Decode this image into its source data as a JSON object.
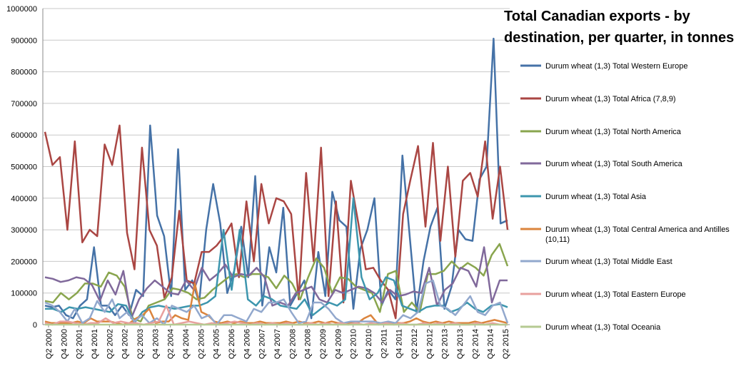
{
  "chart_data": {
    "type": "line",
    "title_lines": [
      "Total Canadian exports - by",
      "destination, per quarter, in tonnes"
    ],
    "xlabel": "",
    "ylabel": "",
    "ylim": [
      0,
      1000000
    ],
    "yticks": [
      0,
      100000,
      200000,
      300000,
      400000,
      500000,
      600000,
      700000,
      800000,
      900000,
      1000000
    ],
    "ytick_labels": [
      "0",
      "100000",
      "200000",
      "300000",
      "400000",
      "500000",
      "600000",
      "700000",
      "800000",
      "900000",
      "1000000"
    ],
    "grid": "horizontal",
    "legend_position": "right",
    "x_tick_labels": [
      "Q2 2000",
      "Q4 2000",
      "Q2 2001",
      "Q4 2001",
      "Q2 2002",
      "Q4 2002",
      "Q2 2003",
      "Q4 2003",
      "Q2 2004",
      "Q4 2004",
      "Q2 2005",
      "Q4 2005",
      "Q2 2006",
      "Q4 2006",
      "Q2 2007",
      "Q4 2007",
      "Q2 2008",
      "Q4 2008",
      "Q2 2009",
      "Q4 2009",
      "Q2 2010",
      "Q4 2010",
      "Q2 2011",
      "Q4 2011",
      "Q2 2012",
      "Q4 2012",
      "Q2 2013",
      "Q4 2013",
      "Q2 2014",
      "Q4 2014",
      "Q2 2015"
    ],
    "series": [
      {
        "name": "Durum wheat (1,3) Total Western Europe",
        "color": "#4572A7",
        "values": [
          60000,
          55000,
          60000,
          30000,
          20000,
          60000,
          80000,
          245000,
          60000,
          60000,
          30000,
          60000,
          30000,
          110000,
          90000,
          630000,
          345000,
          280000,
          90000,
          555000,
          110000,
          140000,
          70000,
          300000,
          445000,
          320000,
          100000,
          170000,
          310000,
          150000,
          470000,
          60000,
          245000,
          165000,
          370000,
          60000,
          100000,
          140000,
          20000,
          230000,
          90000,
          420000,
          330000,
          310000,
          50000,
          240000,
          300000,
          400000,
          60000,
          110000,
          80000,
          535000,
          290000,
          40000,
          200000,
          310000,
          370000,
          50000,
          120000,
          300000,
          270000,
          265000,
          460000,
          500000,
          905000,
          320000,
          330000
        ]
      },
      {
        "name": "Durum wheat (1,3) Total Africa (7,8,9)",
        "color": "#AA4643",
        "values": [
          610000,
          505000,
          530000,
          300000,
          580000,
          260000,
          300000,
          280000,
          570000,
          505000,
          630000,
          290000,
          175000,
          560000,
          300000,
          250000,
          85000,
          150000,
          360000,
          140000,
          130000,
          230000,
          230000,
          250000,
          280000,
          320000,
          150000,
          390000,
          200000,
          445000,
          320000,
          400000,
          390000,
          350000,
          80000,
          480000,
          200000,
          560000,
          90000,
          390000,
          70000,
          455000,
          320000,
          175000,
          180000,
          140000,
          110000,
          20000,
          350000,
          460000,
          565000,
          310000,
          575000,
          265000,
          500000,
          215000,
          455000,
          480000,
          405000,
          580000,
          335000,
          500000,
          300000
        ]
      },
      {
        "name": "Durum wheat (1,3) Total North America",
        "color": "#89A54E",
        "values": [
          75000,
          70000,
          100000,
          80000,
          100000,
          130000,
          130000,
          120000,
          165000,
          155000,
          120000,
          20000,
          10000,
          60000,
          70000,
          80000,
          115000,
          110000,
          100000,
          80000,
          85000,
          110000,
          130000,
          150000,
          160000,
          150000,
          160000,
          160000,
          150000,
          115000,
          155000,
          130000,
          80000,
          150000,
          210000,
          180000,
          100000,
          150000,
          145000,
          120000,
          110000,
          100000,
          40000,
          160000,
          170000,
          40000,
          70000,
          40000,
          160000,
          160000,
          170000,
          200000,
          175000,
          195000,
          180000,
          155000,
          220000,
          255000,
          185000
        ]
      },
      {
        "name": "Durum wheat (1,3) Total South America",
        "color": "#80699B",
        "values": [
          150000,
          145000,
          135000,
          140000,
          150000,
          145000,
          125000,
          75000,
          140000,
          95000,
          170000,
          20000,
          80000,
          115000,
          140000,
          120000,
          100000,
          95000,
          140000,
          110000,
          180000,
          140000,
          160000,
          190000,
          150000,
          160000,
          155000,
          180000,
          150000,
          60000,
          70000,
          60000,
          100000,
          110000,
          120000,
          80000,
          70000,
          110000,
          100000,
          110000,
          120000,
          115000,
          100000,
          70000,
          110000,
          90000,
          95000,
          105000,
          100000,
          180000,
          60000,
          110000,
          130000,
          180000,
          170000,
          120000,
          245000,
          70000,
          140000,
          140000
        ]
      },
      {
        "name": "Durum wheat (1,3) Total Asia",
        "color": "#3D96AE",
        "values": [
          50000,
          50000,
          40000,
          55000,
          50000,
          55000,
          50000,
          45000,
          40000,
          65000,
          60000,
          5000,
          40000,
          55000,
          60000,
          55000,
          50000,
          55000,
          60000,
          60000,
          70000,
          90000,
          300000,
          110000,
          300000,
          80000,
          60000,
          90000,
          80000,
          60000,
          55000,
          50000,
          80000,
          30000,
          50000,
          70000,
          60000,
          80000,
          400000,
          150000,
          80000,
          100000,
          150000,
          140000,
          60000,
          50000,
          40000,
          55000,
          60000,
          60000,
          40000,
          50000,
          70000,
          50000,
          40000,
          60000,
          65000,
          55000
        ]
      },
      {
        "name": "Durum wheat (1,3) Total Central America and Antilles (10,11)",
        "color": "#DB843D",
        "values": [
          10000,
          5000,
          5000,
          5000,
          5000,
          10000,
          5000,
          20000,
          10000,
          10000,
          10000,
          5000,
          0,
          5000,
          20000,
          30000,
          50000,
          5000,
          10000,
          10000,
          30000,
          20000,
          15000,
          130000,
          40000,
          30000,
          10000,
          5000,
          10000,
          5000,
          10000,
          5000,
          5000,
          10000,
          5000,
          5000,
          5000,
          10000,
          5000,
          10000,
          5000,
          5000,
          10000,
          5000,
          10000,
          5000,
          5000,
          5000,
          5000,
          20000,
          30000,
          5000,
          5000,
          5000,
          5000,
          5000,
          10000,
          20000,
          10000,
          5000,
          10000,
          5000,
          10000,
          5000,
          5000,
          5000,
          10000,
          5000,
          10000,
          15000,
          10000,
          5000
        ]
      },
      {
        "name": "Durum wheat (1,3) Total Middle East",
        "color": "#92A8CD",
        "values": [
          70000,
          60000,
          40000,
          10000,
          50000,
          5000,
          20000,
          75000,
          40000,
          80000,
          20000,
          40000,
          10000,
          30000,
          5000,
          20000,
          0,
          60000,
          50000,
          40000,
          60000,
          20000,
          30000,
          0,
          30000,
          30000,
          20000,
          10000,
          50000,
          40000,
          70000,
          70000,
          80000,
          40000,
          5000,
          10000,
          70000,
          70000,
          50000,
          20000,
          5000,
          10000,
          10000,
          10000,
          10000,
          5000,
          10000,
          5000,
          30000,
          20000,
          40000,
          130000,
          140000,
          60000,
          50000,
          30000,
          60000,
          90000,
          40000,
          30000,
          60000,
          70000,
          5000
        ]
      },
      {
        "name": "Durum wheat (1,3) Total Eastern Europe",
        "color": "#E8A09E",
        "values": [
          5000,
          0,
          10000,
          10000,
          5000,
          0,
          5000,
          5000,
          20000,
          5000,
          10000,
          5000,
          5000,
          0,
          5000,
          10000,
          60000,
          0,
          5000,
          10000,
          5000,
          0,
          5000,
          0,
          5000,
          10000,
          5000,
          0,
          5000,
          0,
          5000,
          0,
          5000,
          0,
          0,
          5000,
          0,
          5000,
          0,
          5000,
          0,
          5000,
          0,
          5000,
          0,
          5000,
          0,
          5000,
          0,
          0,
          5000,
          0,
          5000,
          0,
          5000,
          0,
          0,
          5000,
          0,
          5000,
          0,
          0
        ]
      },
      {
        "name": "Durum wheat (1,3) Total Oceania",
        "color": "#B5CA92",
        "values": [
          0,
          0,
          0,
          0,
          0,
          0,
          0,
          0,
          0,
          0,
          0,
          0,
          0,
          0,
          0,
          0,
          0,
          0,
          0,
          0,
          0,
          0,
          0,
          0,
          0,
          0,
          0,
          0,
          0,
          0,
          0,
          0,
          0,
          0,
          0,
          0,
          0,
          0,
          0,
          0,
          0,
          0,
          0,
          0,
          0,
          0,
          0,
          0,
          0,
          0,
          0,
          0,
          0,
          0,
          0,
          0,
          0,
          0,
          0,
          0,
          0,
          0,
          0
        ]
      }
    ]
  }
}
